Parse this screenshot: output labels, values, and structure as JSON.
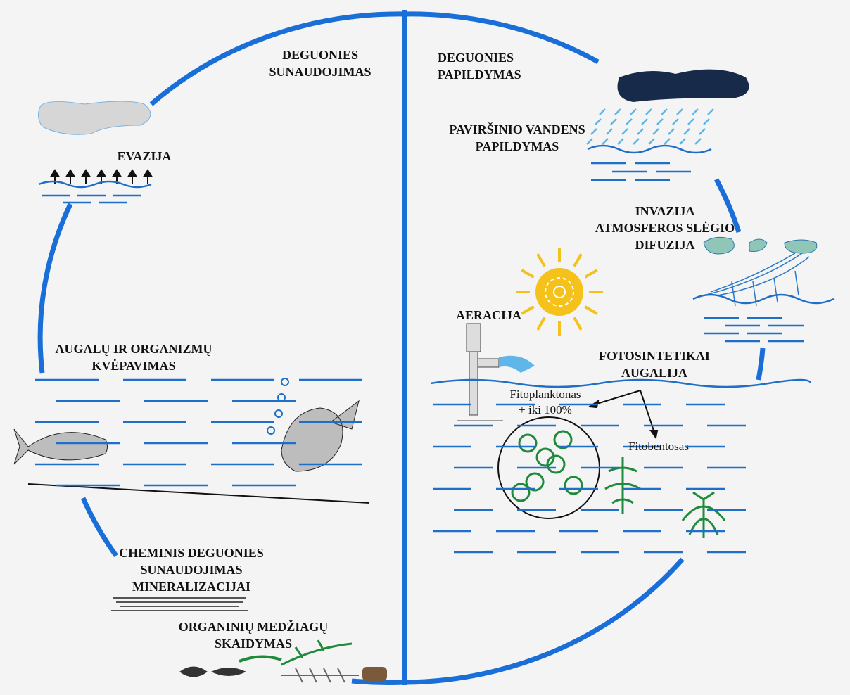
{
  "headers": {
    "consumption": [
      "DEGUONIES",
      "SUNAUDOJIMAS"
    ],
    "replenishment": [
      "DEGUONIES",
      "PAPILDYMAS"
    ]
  },
  "labels": {
    "evasion": [
      "EVAZIJA"
    ],
    "respiration": [
      "AUGALŲ IR ORGANIZMŲ",
      "KVĖPAVIMAS"
    ],
    "chemical": [
      "CHEMINIS DEGUONIES",
      "SUNAUDOJIMAS",
      "MINERALIZACIJAI"
    ],
    "decomposition": [
      "ORGANINIŲ MEDŽIAGŲ",
      "SKAIDYMAS"
    ],
    "surface_water": [
      "PAVIRŠINIO VANDENS",
      "PAPILDYMAS"
    ],
    "invasion": [
      "INVAZIJA",
      "ATMOSFEROS SLĖGIO",
      "DIFUZIJA"
    ],
    "aeration": [
      "AERACIJA"
    ],
    "photosynthetics": [
      "FOTOSINTETIKAI",
      "AUGALIJA"
    ],
    "phytoplankton": [
      "Fitoplanktonas",
      "+ iki 100%"
    ],
    "phytobenthos": [
      "Fitobentosas"
    ]
  }
}
